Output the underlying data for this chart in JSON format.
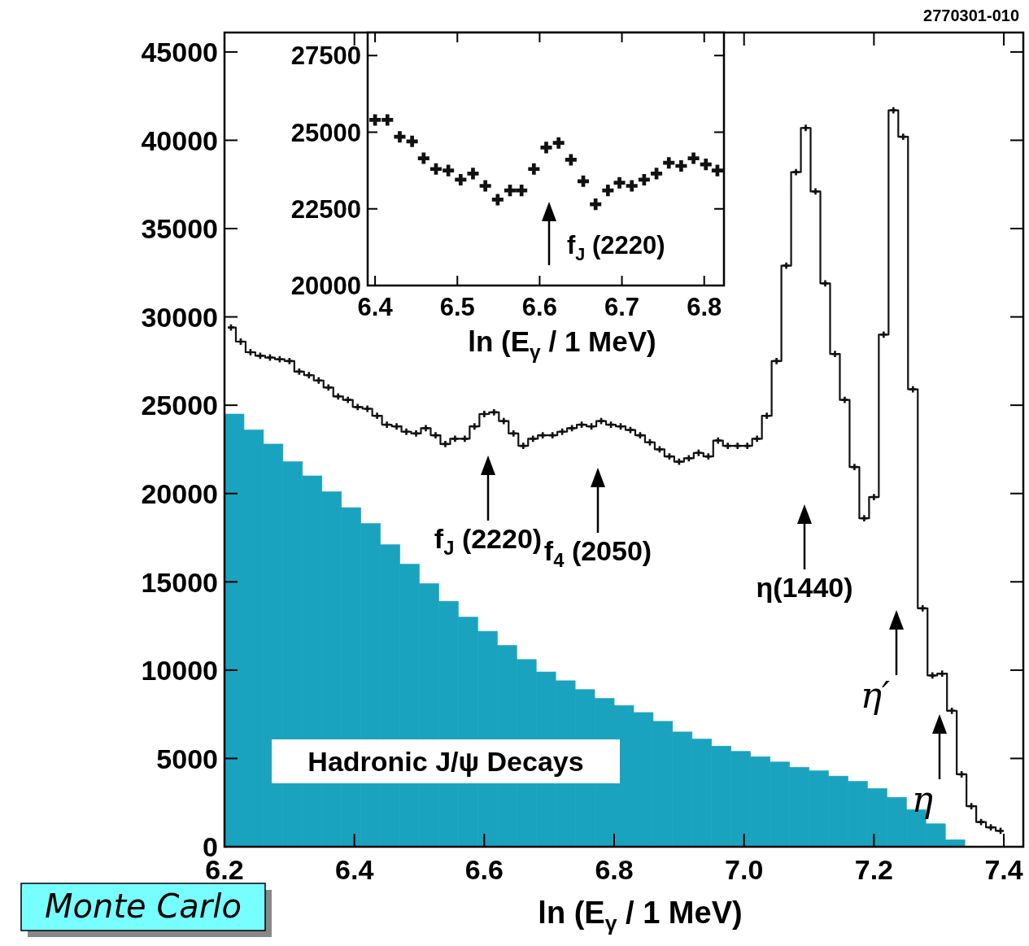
{
  "chart_data": [
    {
      "type": "histogram",
      "xlabel": "ln (E$_{γ}$ / 1 MeV)",
      "bins": [
        6.2,
        6.23,
        6.26,
        6.29,
        6.32,
        6.35,
        6.38,
        6.41,
        6.44,
        6.47,
        6.5,
        6.53,
        6.56,
        6.59,
        6.62,
        6.65,
        6.68,
        6.71,
        6.74,
        6.77,
        6.8,
        6.83,
        6.86,
        6.89,
        6.92,
        6.95,
        6.98,
        7.01,
        7.04,
        7.07,
        7.1,
        7.13,
        7.16,
        7.19,
        7.22,
        7.25,
        7.28,
        7.31,
        7.34,
        7.37,
        7.4
      ],
      "series": [
        {
          "type": "histogram",
          "color": "#1aa3bf",
          "values": [
            24500,
            23600,
            22800,
            21800,
            21000,
            20100,
            19200,
            18300,
            17100,
            16000,
            14900,
            13900,
            13000,
            12200,
            11400,
            10600,
            9900,
            9400,
            8900,
            8400,
            8000,
            7600,
            7100,
            6500,
            6100,
            5700,
            5400,
            5100,
            4800,
            4500,
            4300,
            4000,
            3700,
            3300,
            2800,
            2100,
            1300,
            400,
            0,
            0
          ]
        },
        {
          "type": "step",
          "color": "#111111",
          "marker": "cross",
          "x": [
            6.21,
            6.225,
            6.24,
            6.255,
            6.27,
            6.285,
            6.3,
            6.315,
            6.33,
            6.345,
            6.36,
            6.375,
            6.39,
            6.405,
            6.42,
            6.435,
            6.45,
            6.465,
            6.48,
            6.495,
            6.51,
            6.525,
            6.54,
            6.555,
            6.57,
            6.585,
            6.6,
            6.615,
            6.63,
            6.645,
            6.66,
            6.675,
            6.69,
            6.705,
            6.72,
            6.735,
            6.75,
            6.765,
            6.78,
            6.795,
            6.81,
            6.825,
            6.84,
            6.855,
            6.87,
            6.885,
            6.9,
            6.915,
            6.93,
            6.945,
            6.96,
            6.975,
            6.99,
            7.005,
            7.02,
            7.035,
            7.05,
            7.065,
            7.08,
            7.095,
            7.11,
            7.125,
            7.14,
            7.155,
            7.17,
            7.185,
            7.2,
            7.215,
            7.23,
            7.245,
            7.26,
            7.275,
            7.29,
            7.305,
            7.32,
            7.335,
            7.35,
            7.365,
            7.38,
            7.395
          ],
          "values": [
            29400,
            28600,
            28000,
            27800,
            27700,
            27600,
            27500,
            26900,
            26700,
            26400,
            26000,
            25500,
            25300,
            24900,
            24800,
            24400,
            23900,
            23800,
            23500,
            23400,
            23700,
            23300,
            22800,
            23100,
            23100,
            23800,
            24500,
            24600,
            24100,
            23400,
            22700,
            23100,
            23300,
            23300,
            23500,
            23700,
            23900,
            23800,
            24100,
            23900,
            23800,
            23600,
            23300,
            22900,
            22500,
            22100,
            21800,
            22000,
            22300,
            22100,
            23000,
            22700,
            22700,
            22700,
            23100,
            24400,
            27500,
            32900,
            38200,
            40700,
            37100,
            31900,
            27900,
            25300,
            21500,
            18600,
            19800,
            29000,
            41700,
            40200,
            25900,
            13500,
            9700,
            9800,
            7700,
            4100,
            2300,
            1400,
            1100,
            900
          ]
        }
      ],
      "xlim": [
        6.2,
        7.43
      ],
      "ylim": [
        0,
        46100
      ],
      "xticks": [
        6.2,
        6.4,
        6.6,
        6.8,
        {
          "value": 7,
          "label": "7.0"
        },
        7.2,
        7.4
      ],
      "yticks": [
        0,
        5000,
        10000,
        15000,
        20000,
        25000,
        30000,
        35000,
        40000,
        45000
      ],
      "annotations": [
        "2770301-010",
        "Monte Carlo",
        "Hadronic J/ψ Decays",
        "f$_{J}$ (2220)",
        "f$_{4}$ (2050)",
        "η(1440)",
        "η′",
        "η"
      ]
    },
    {
      "type": "scatter",
      "xlabel": "ln (E$_{γ}$ / 1 MeV)",
      "color": "#111111",
      "marker": "cross",
      "x": [
        6.4,
        6.415,
        6.43,
        6.445,
        6.459,
        6.474,
        6.489,
        6.504,
        6.519,
        6.534,
        6.549,
        6.564,
        6.578,
        6.593,
        6.608,
        6.623,
        6.638,
        6.653,
        6.668,
        6.683,
        6.697,
        6.712,
        6.727,
        6.742,
        6.757,
        6.772,
        6.787,
        6.802,
        6.816
      ],
      "values": [
        25400,
        25400,
        24850,
        24700,
        24150,
        23800,
        23750,
        23450,
        23650,
        23250,
        22800,
        23100,
        23100,
        23800,
        24500,
        24650,
        24100,
        23400,
        22650,
        23100,
        23350,
        23250,
        23450,
        23650,
        24000,
        23900,
        24150,
        23950,
        23750
      ],
      "xlim": [
        6.391,
        6.824
      ],
      "ylim": [
        20000,
        28250
      ],
      "xticks": [
        6.4,
        6.5,
        6.6,
        6.7,
        6.8
      ],
      "yticks": [
        20000,
        22500,
        25000,
        27500
      ],
      "annotations": [
        "f$_{J}$ (2220)"
      ]
    }
  ]
}
